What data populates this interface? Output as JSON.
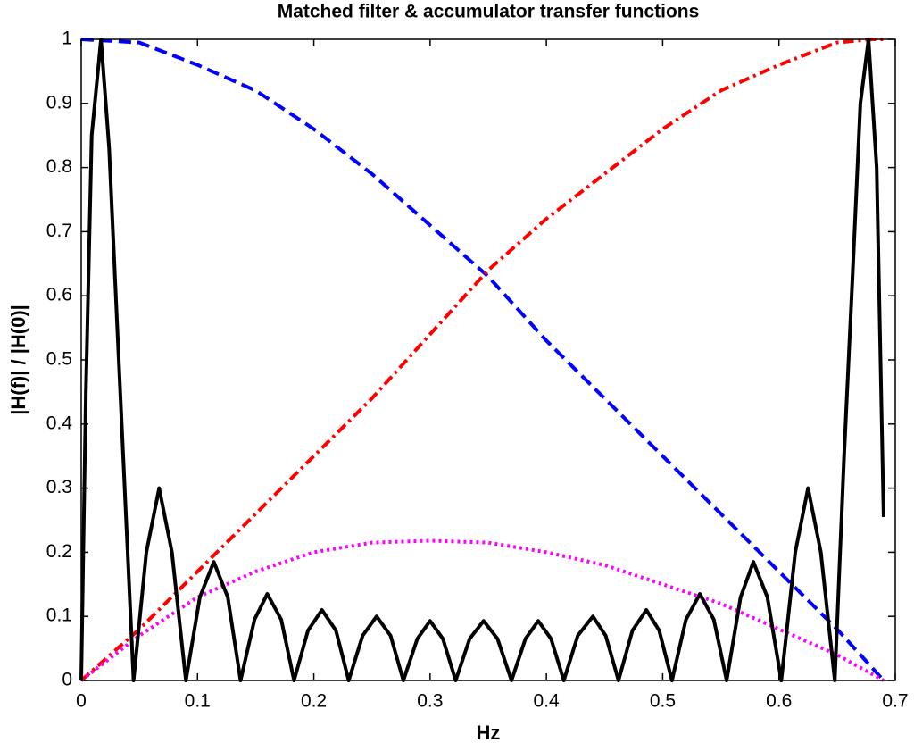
{
  "chart_data": {
    "type": "line",
    "title": "Matched filter & accumulator transfer functions",
    "x_label": "Hz",
    "y_label": "|H(f)| / |H(0)|",
    "xlim": [
      0,
      0.7
    ],
    "ylim": [
      0,
      1
    ],
    "xticks": [
      0,
      0.1,
      0.2,
      0.3,
      0.4,
      0.5,
      0.6,
      0.7
    ],
    "yticks": [
      0,
      0.1,
      0.2,
      0.3,
      0.4,
      0.5,
      0.6,
      0.7,
      0.8,
      0.9,
      1
    ],
    "grid": false,
    "series": [
      {
        "color": "#0000ff",
        "linestyle": "dashed",
        "x": [
          0,
          0.05,
          0.1,
          0.15,
          0.2,
          0.25,
          0.3,
          0.35,
          0.4,
          0.45,
          0.5,
          0.55,
          0.6,
          0.65,
          0.69
        ],
        "values": [
          1,
          0.995,
          0.96,
          0.92,
          0.86,
          0.79,
          0.71,
          0.63,
          0.53,
          0.44,
          0.35,
          0.26,
          0.17,
          0.08,
          0
        ]
      },
      {
        "color": "#ff0000",
        "linestyle": "dashdot",
        "x": [
          0,
          0.05,
          0.1,
          0.15,
          0.2,
          0.25,
          0.3,
          0.35,
          0.4,
          0.45,
          0.5,
          0.55,
          0.6,
          0.65,
          0.68,
          0.69
        ],
        "values": [
          0,
          0.08,
          0.17,
          0.26,
          0.35,
          0.44,
          0.54,
          0.64,
          0.72,
          0.79,
          0.86,
          0.92,
          0.96,
          0.995,
          1,
          1
        ]
      },
      {
        "color": "#ff00ff",
        "linestyle": "dotted",
        "x": [
          0,
          0.05,
          0.1,
          0.15,
          0.2,
          0.25,
          0.3,
          0.35,
          0.4,
          0.45,
          0.5,
          0.55,
          0.6,
          0.65,
          0.69
        ],
        "values": [
          0,
          0.07,
          0.13,
          0.17,
          0.2,
          0.215,
          0.218,
          0.215,
          0.2,
          0.18,
          0.15,
          0.12,
          0.08,
          0.04,
          0
        ]
      },
      {
        "color": "#000000",
        "linestyle": "solid",
        "x": [
          0,
          0.004,
          0.009,
          0.017,
          0.024,
          0.031,
          0.045,
          0.056,
          0.067,
          0.078,
          0.09,
          0.102,
          0.114,
          0.126,
          0.137,
          0.149,
          0.16,
          0.172,
          0.183,
          0.195,
          0.207,
          0.219,
          0.23,
          0.242,
          0.254,
          0.266,
          0.277,
          0.289,
          0.3,
          0.311,
          0.322,
          0.334,
          0.346,
          0.358,
          0.37,
          0.382,
          0.393,
          0.404,
          0.415,
          0.427,
          0.44,
          0.451,
          0.462,
          0.474,
          0.486,
          0.497,
          0.508,
          0.52,
          0.532,
          0.544,
          0.555,
          0.567,
          0.578,
          0.59,
          0.602,
          0.614,
          0.625,
          0.636,
          0.648,
          0.656,
          0.663,
          0.67,
          0.677,
          0.684,
          0.69
        ],
        "values": [
          0,
          0.45,
          0.85,
          1,
          0.83,
          0.55,
          0,
          0.2,
          0.3,
          0.2,
          0,
          0.13,
          0.185,
          0.13,
          0,
          0.095,
          0.135,
          0.095,
          0,
          0.078,
          0.11,
          0.078,
          0,
          0.07,
          0.1,
          0.07,
          0,
          0.065,
          0.093,
          0.065,
          0,
          0.065,
          0.093,
          0.065,
          0,
          0.065,
          0.093,
          0.065,
          0,
          0.07,
          0.1,
          0.07,
          0,
          0.078,
          0.11,
          0.078,
          0,
          0.095,
          0.135,
          0.095,
          0,
          0.13,
          0.185,
          0.13,
          0,
          0.2,
          0.3,
          0.2,
          0,
          0.35,
          0.62,
          0.9,
          1,
          0.8,
          0.255
        ]
      }
    ]
  }
}
